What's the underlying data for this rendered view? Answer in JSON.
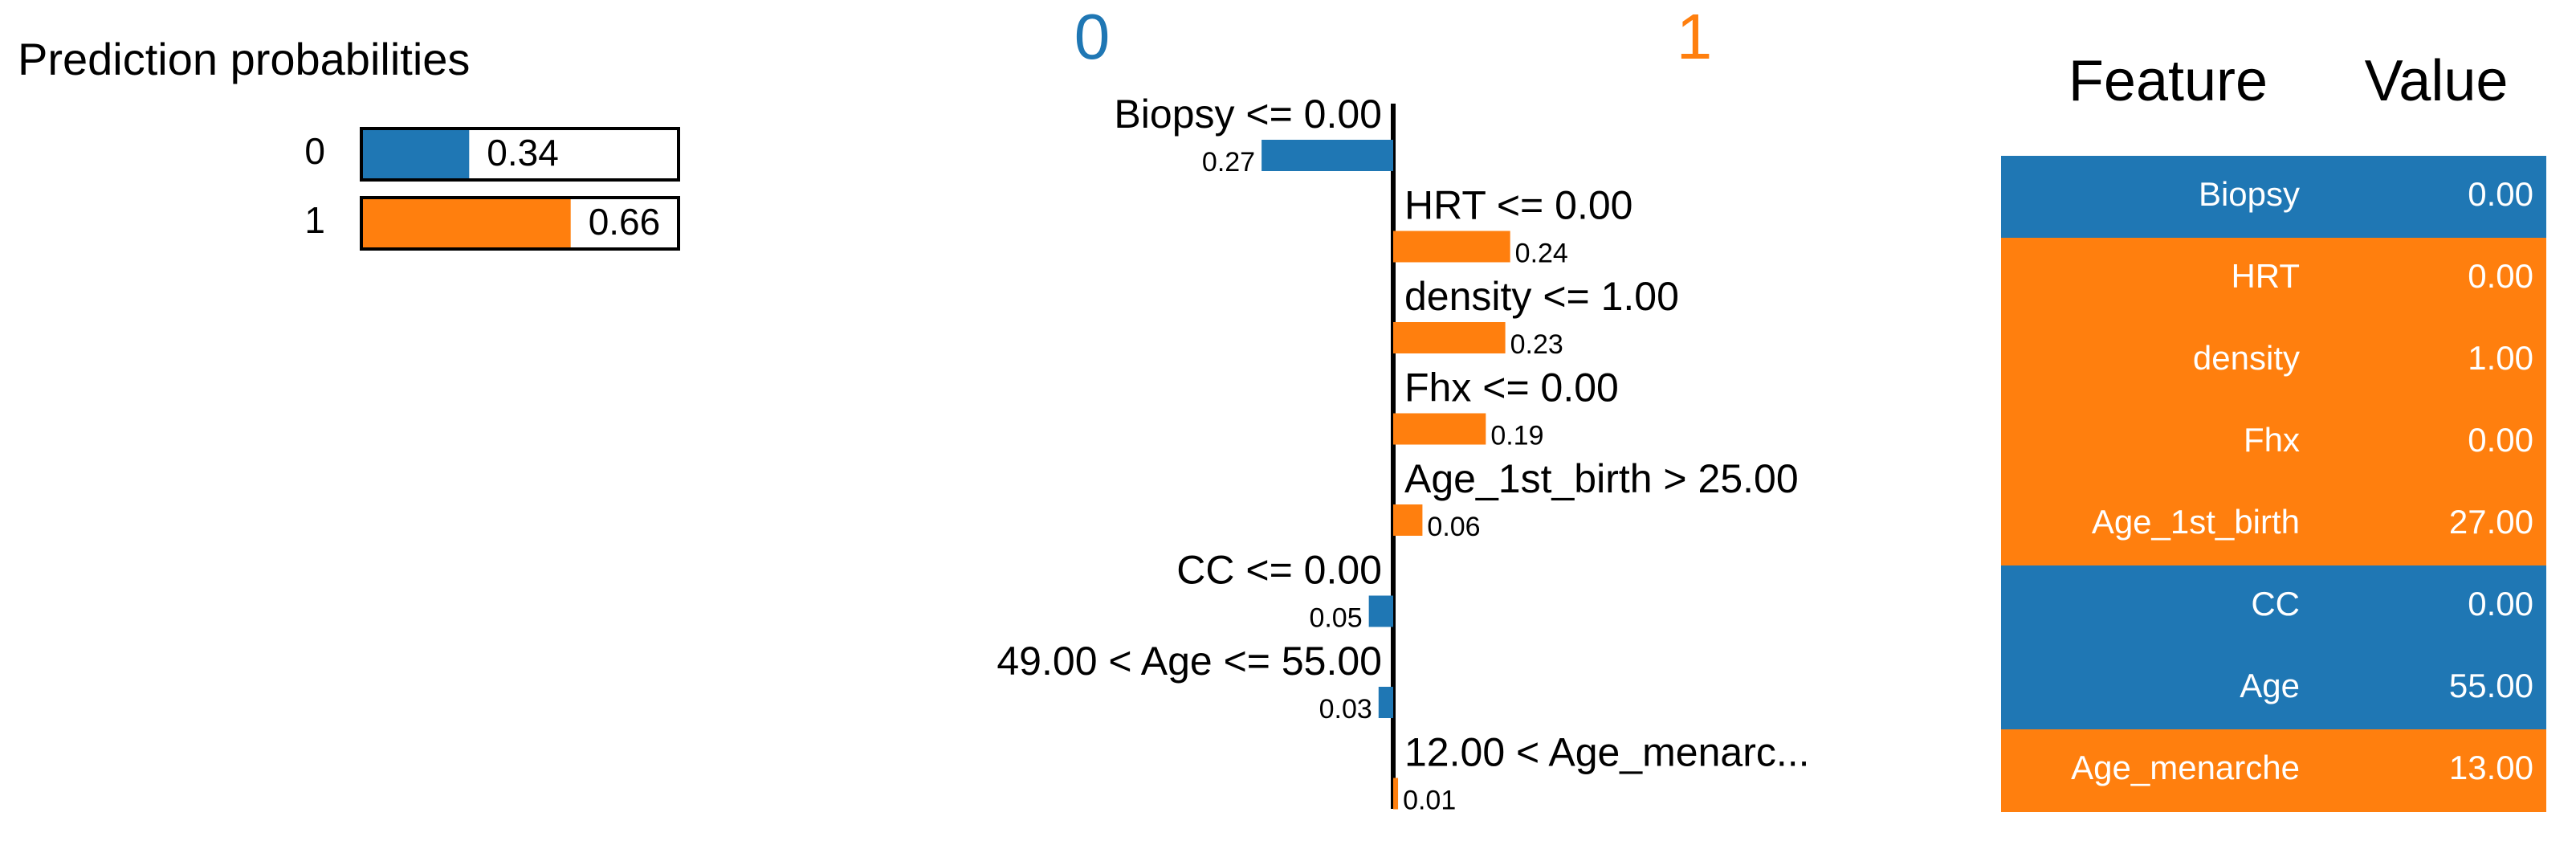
{
  "chart_data": [
    {
      "type": "hbar",
      "title": "Prediction probabilities",
      "categories": [
        "0",
        "1"
      ],
      "values": [
        0.34,
        0.66
      ],
      "colors": [
        "#1f77b4",
        "#ff7f0e"
      ],
      "xlim": [
        0,
        1
      ]
    },
    {
      "type": "diverging",
      "categories": [
        "Biopsy <= 0.00",
        "HRT <= 0.00",
        "density <= 1.00",
        "Fhx <= 0.00",
        "Age_1st_birth > 25.00",
        "CC <= 0.00",
        "49.00 < Age <= 55.00",
        "12.00 < Age_menarc..."
      ],
      "series": [
        {
          "name": "0",
          "color": "#1f77b4",
          "values": [
            0.27,
            null,
            null,
            null,
            null,
            0.05,
            0.03,
            null
          ]
        },
        {
          "name": "1",
          "color": "#ff7f0e",
          "values": [
            null,
            0.24,
            0.23,
            0.19,
            0.06,
            null,
            null,
            0.01
          ]
        }
      ]
    }
  ],
  "table": {
    "header": [
      "Feature",
      "Value"
    ],
    "rows": [
      [
        "Biopsy",
        "0.00"
      ],
      [
        "HRT",
        "0.00"
      ],
      [
        "density",
        "1.00"
      ],
      [
        "Fhx",
        "0.00"
      ],
      [
        "Age_1st_birth",
        "27.00"
      ],
      [
        "CC",
        "0.00"
      ],
      [
        "Age",
        "55.00"
      ],
      [
        "Age_menarche",
        "13.00"
      ]
    ],
    "row_colors": [
      "#1f77b4",
      "#ff7f0e",
      "#ff7f0e",
      "#ff7f0e",
      "#ff7f0e",
      "#1f77b4",
      "#1f77b4",
      "#ff7f0e"
    ]
  }
}
